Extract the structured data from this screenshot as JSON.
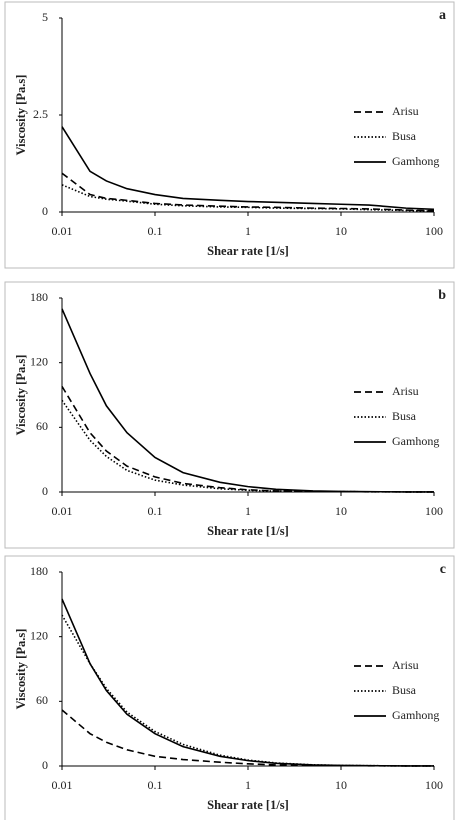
{
  "chart_data": [
    {
      "type": "line",
      "panel_label": "a",
      "x_label": "Shear rate [1/s]",
      "y_label": "Viscosity [Pa.s]",
      "x_scale": "log",
      "xlim": [
        0.01,
        100
      ],
      "xticks": [
        0.01,
        0.1,
        1,
        10,
        100
      ],
      "ylim": [
        0,
        5
      ],
      "yticks": [
        0,
        2.5,
        5
      ],
      "legend": "right",
      "x": [
        0.01,
        0.02,
        0.03,
        0.05,
        0.1,
        0.2,
        0.5,
        1,
        2,
        5,
        10,
        20,
        50,
        100
      ],
      "series": [
        {
          "name": "Arisu",
          "color": "#000000",
          "dash": "dashed",
          "values": [
            1.0,
            0.45,
            0.35,
            0.3,
            0.22,
            0.18,
            0.15,
            0.13,
            0.12,
            0.1,
            0.09,
            0.08,
            0.05,
            0.03
          ]
        },
        {
          "name": "Busa",
          "color": "#000000",
          "dash": "dotted",
          "values": [
            0.7,
            0.4,
            0.33,
            0.28,
            0.2,
            0.16,
            0.13,
            0.12,
            0.1,
            0.09,
            0.08,
            0.06,
            0.04,
            0.02
          ]
        },
        {
          "name": "Gamhong",
          "color": "#000000",
          "dash": "solid",
          "values": [
            2.2,
            1.05,
            0.8,
            0.6,
            0.45,
            0.35,
            0.3,
            0.27,
            0.25,
            0.22,
            0.2,
            0.18,
            0.1,
            0.07
          ]
        }
      ]
    },
    {
      "type": "line",
      "panel_label": "b",
      "x_label": "Shear rate [1/s]",
      "y_label": "Viscosity [Pa.s]",
      "x_scale": "log",
      "xlim": [
        0.01,
        100
      ],
      "xticks": [
        0.01,
        0.1,
        1,
        10,
        100
      ],
      "ylim": [
        0,
        180
      ],
      "yticks": [
        0,
        60,
        120,
        180
      ],
      "legend": "right",
      "x": [
        0.01,
        0.02,
        0.03,
        0.05,
        0.1,
        0.2,
        0.5,
        1,
        2,
        5,
        10,
        20,
        50,
        100
      ],
      "series": [
        {
          "name": "Arisu",
          "color": "#000000",
          "dash": "dashed",
          "values": [
            98,
            55,
            38,
            24,
            14,
            8,
            4,
            2,
            1,
            0.5,
            0.3,
            0.2,
            0.1,
            0.05
          ]
        },
        {
          "name": "Busa",
          "color": "#000000",
          "dash": "dotted",
          "values": [
            85,
            48,
            33,
            20,
            11,
            6.5,
            3,
            1.6,
            0.8,
            0.4,
            0.3,
            0.2,
            0.1,
            0.05
          ]
        },
        {
          "name": "Gamhong",
          "color": "#000000",
          "dash": "solid",
          "values": [
            170,
            110,
            80,
            55,
            32,
            18,
            9,
            5,
            2.5,
            1,
            0.5,
            0.3,
            0.1,
            0.05
          ]
        }
      ]
    },
    {
      "type": "line",
      "panel_label": "c",
      "x_label": "Shear rate [1/s]",
      "y_label": "Viscosity [Pa.s]",
      "x_scale": "log",
      "xlim": [
        0.01,
        100
      ],
      "xticks": [
        0.01,
        0.1,
        1,
        10,
        100
      ],
      "ylim": [
        0,
        180
      ],
      "yticks": [
        0,
        60,
        120,
        180
      ],
      "legend": "right",
      "x": [
        0.01,
        0.02,
        0.03,
        0.05,
        0.1,
        0.2,
        0.5,
        1,
        2,
        5,
        10,
        20,
        50,
        100
      ],
      "series": [
        {
          "name": "Arisu",
          "color": "#000000",
          "dash": "dashed",
          "values": [
            52,
            30,
            22,
            15,
            9,
            6,
            3.5,
            2,
            1,
            0.5,
            0.3,
            0.2,
            0.1,
            0.05
          ]
        },
        {
          "name": "Busa",
          "color": "#000000",
          "dash": "dotted",
          "values": [
            140,
            95,
            72,
            50,
            32,
            20,
            10,
            5.5,
            2.8,
            1.1,
            0.5,
            0.3,
            0.1,
            0.05
          ]
        },
        {
          "name": "Gamhong",
          "color": "#000000",
          "dash": "solid",
          "values": [
            155,
            95,
            70,
            48,
            30,
            18,
            9,
            5,
            2.5,
            1,
            0.5,
            0.3,
            0.1,
            0.05
          ]
        }
      ]
    }
  ]
}
